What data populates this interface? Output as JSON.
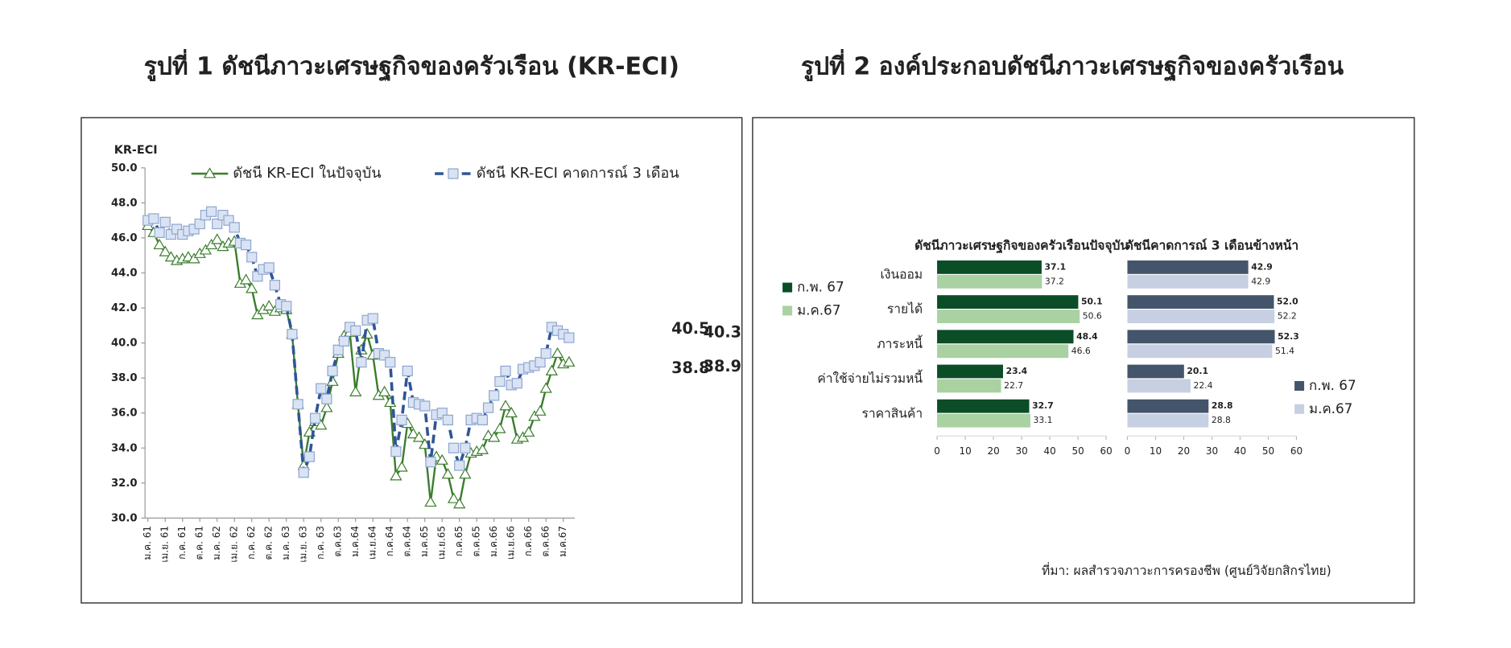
{
  "chart_data": [
    {
      "type": "line",
      "title": "รูปที่ 1 ดัชนีภาวะเศรษฐกิจของครัวเรือน (KR-ECI)",
      "y_label": "KR-ECI",
      "categories": [
        "ม.ค. 61",
        null,
        null,
        "เม.ย. 61",
        null,
        null,
        "ก.ค. 61",
        null,
        null,
        "ต.ค. 61",
        null,
        null,
        "ม.ค. 62",
        null,
        null,
        "เม.ย. 62",
        null,
        null,
        "ก.ค. 62",
        null,
        null,
        "ต.ค. 62",
        null,
        null,
        "ม.ค. 63",
        null,
        null,
        "เม.ย. 63",
        null,
        null,
        "ก.ค. 63",
        null,
        null,
        "ต.ค.63",
        null,
        null,
        "ม.ค.64",
        null,
        null,
        "เม.ย.64",
        null,
        null,
        "ก.ค.64",
        null,
        null,
        "ต.ค.64",
        null,
        null,
        "ม.ค.65",
        null,
        null,
        "เม.ย.65",
        null,
        null,
        "ก.ค.65",
        null,
        null,
        "ต.ค.65",
        null,
        null,
        "ม.ค.66",
        null,
        null,
        "เม.ย.66",
        null,
        null,
        "ก.ค.66",
        null,
        null,
        "ต.ค.66",
        null,
        null,
        "ม.ค.67",
        null
      ],
      "series": [
        {
          "name": "ดัชนี KR-ECI ในปัจจุบัน",
          "color": "#3a7d2c",
          "marker": "triangle",
          "dash": false,
          "values": [
            46.7,
            46.3,
            45.6,
            45.2,
            44.9,
            44.7,
            44.8,
            44.9,
            44.8,
            45.1,
            45.3,
            45.6,
            45.9,
            45.5,
            45.7,
            45.8,
            43.4,
            43.6,
            43.1,
            41.6,
            41.9,
            42.1,
            41.8,
            42.0,
            41.9,
            40.5,
            36.5,
            33.0,
            34.9,
            35.5,
            35.3,
            36.3,
            37.8,
            39.4,
            40.4,
            40.6,
            37.2,
            39.6,
            40.5,
            39.3,
            37.0,
            37.2,
            36.6,
            32.4,
            32.9,
            35.4,
            34.8,
            34.6,
            34.2,
            30.9,
            33.5,
            33.3,
            32.5,
            31.1,
            30.8,
            32.5,
            33.7,
            33.8,
            33.9,
            34.7,
            34.6,
            35.1,
            36.4,
            36.0,
            34.5,
            34.6,
            34.9,
            35.8,
            36.1,
            37.4,
            38.4,
            39.4,
            38.8,
            38.9
          ]
        },
        {
          "name": "ดัชนี KR-ECI คาดการณ์ 3 เดือน",
          "color": "#2f5597",
          "marker": "square",
          "dash": true,
          "values": [
            47.0,
            47.1,
            46.3,
            46.9,
            46.2,
            46.5,
            46.2,
            46.4,
            46.5,
            46.8,
            47.3,
            47.5,
            46.8,
            47.3,
            47.0,
            46.6,
            45.7,
            45.6,
            44.9,
            43.8,
            44.2,
            44.3,
            43.3,
            42.2,
            42.1,
            40.5,
            36.5,
            32.6,
            33.5,
            35.7,
            37.4,
            36.8,
            38.4,
            39.6,
            40.1,
            40.9,
            40.7,
            38.9,
            41.3,
            41.4,
            39.4,
            39.3,
            38.9,
            33.8,
            35.6,
            38.4,
            36.6,
            36.5,
            36.4,
            33.2,
            35.9,
            36.0,
            35.6,
            34.0,
            33.0,
            34.0,
            35.6,
            35.7,
            35.6,
            36.3,
            37.0,
            37.8,
            38.4,
            37.6,
            37.7,
            38.5,
            38.6,
            38.7,
            38.9,
            39.4,
            40.9,
            40.7,
            40.5,
            40.3
          ]
        }
      ],
      "ylim": [
        30,
        50
      ],
      "yticks": [
        {
          "value": 30,
          "label": "30.0"
        },
        {
          "value": 32,
          "label": "32.0"
        },
        {
          "value": 34,
          "label": "34.0"
        },
        {
          "value": 36,
          "label": "36.0"
        },
        {
          "value": 38,
          "label": "38.0"
        },
        {
          "value": 40,
          "label": "40.0"
        },
        {
          "value": 42,
          "label": "42.0"
        },
        {
          "value": 44,
          "label": "44.0"
        },
        {
          "value": 46,
          "label": "46.0"
        },
        {
          "value": 48,
          "label": "48.0"
        },
        {
          "value": 50,
          "label": "50.0"
        }
      ],
      "grid": false
    },
    {
      "type": "bar",
      "orientation": "horizontal",
      "title": "รูปที่ 2 องค์ประกอบดัชนีภาวะเศรษฐกิจของครัวเรือน",
      "categories": [
        "เงินออม",
        "รายได้",
        "ภาระหนี้",
        "ค่าใช้จ่ายไม่รวมหนี้",
        "ราคาสินค้า"
      ],
      "note": "ที่มา: ผลสำรวจภาวะการครองชีพ (ศูนย์วิจัยกสิกรไทย)",
      "panels": [
        {
          "title": "ดัชนีภาวะเศรษฐกิจของครัวเรือนปัจจุบัน",
          "legend": "left",
          "xlim": [
            0,
            60
          ],
          "xticks": [
            0,
            10,
            20,
            30,
            40,
            50,
            60
          ],
          "series": [
            {
              "name": "ก.พ. 67",
              "color": "#0b4d26",
              "label_color": "#1f6e1f",
              "values": [
                37.1,
                50.1,
                48.4,
                23.4,
                32.7
              ]
            },
            {
              "name": "ม.ค.67",
              "color": "#a9d1a1",
              "label_color": "#8c8c8c",
              "values": [
                37.2,
                50.6,
                46.6,
                22.7,
                33.1
              ]
            }
          ]
        },
        {
          "title": "ดัชนีคาดการณ์ 3 เดือนข้างหน้า",
          "legend": "right",
          "xlim": [
            0,
            60
          ],
          "xticks": [
            0,
            10,
            20,
            30,
            40,
            50,
            60
          ],
          "series": [
            {
              "name": "ก.พ. 67",
              "color": "#44546a",
              "label_color": "#2f5597",
              "values": [
                42.9,
                52,
                52.3,
                20.1,
                28.8
              ],
              "value_labels": [
                "42.9",
                "52.0",
                "52.3",
                "20.1",
                "28.8"
              ]
            },
            {
              "name": "ม.ค.67",
              "color": "#c6d0e2",
              "label_color": "#8c8c8c",
              "values": [
                42.9,
                52.2,
                51.4,
                22.4,
                28.8
              ]
            }
          ]
        }
      ]
    }
  ]
}
